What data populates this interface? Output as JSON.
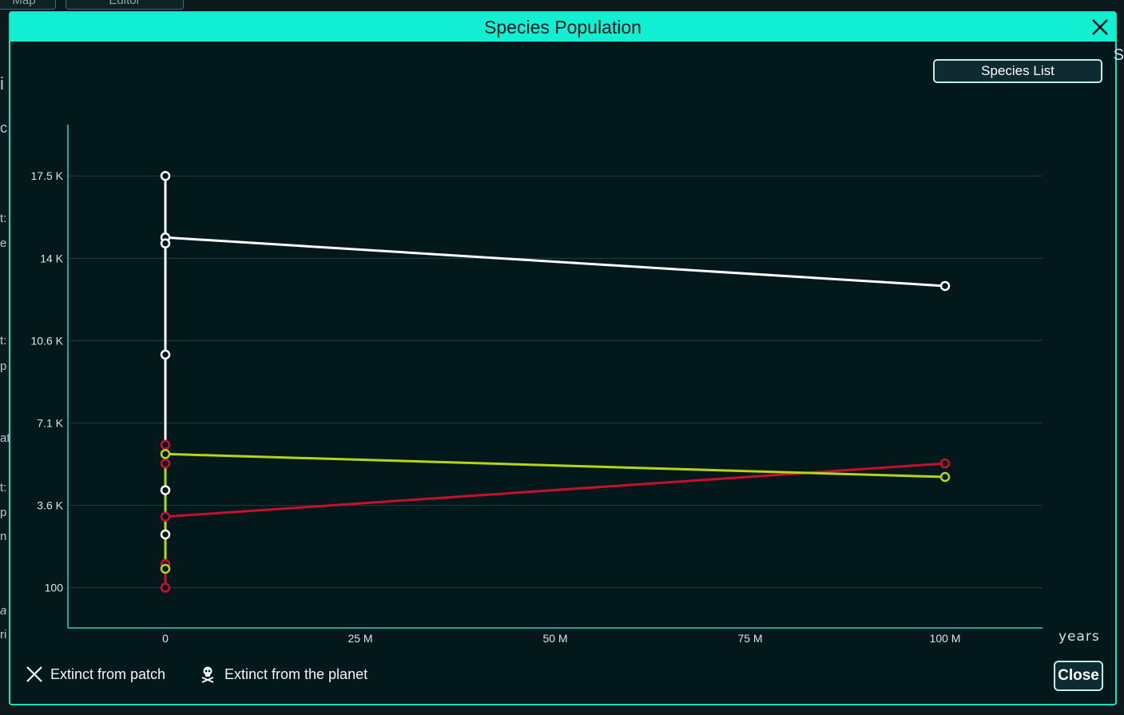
{
  "background": {
    "tabs": [
      "Map",
      "Editor"
    ],
    "edge_fragments": [
      "i",
      "c",
      "t:",
      "e",
      "t:",
      "p",
      "at",
      "t:",
      "p",
      "n",
      "a",
      "ri"
    ]
  },
  "dialog": {
    "title": "Species Population",
    "species_list_label": "Species List",
    "close_label": "Close",
    "legend": {
      "extinct_patch": "Extinct from patch",
      "extinct_planet": "Extinct from the planet"
    }
  },
  "colors": {
    "accent": "#11f0d2",
    "series_white": "#ffffff",
    "series_red": "#c8102e",
    "series_green": "#b5d615"
  },
  "chart_data": {
    "type": "line",
    "xlabel": "years",
    "ylabel": "",
    "title": "",
    "x_ticks": [
      {
        "value": 0,
        "label": "0"
      },
      {
        "value": 25000000,
        "label": "25 M"
      },
      {
        "value": 50000000,
        "label": "50 M"
      },
      {
        "value": 75000000,
        "label": "75 M"
      },
      {
        "value": 100000000,
        "label": "100 M"
      }
    ],
    "y_ticks": [
      {
        "value": 100,
        "label": "100"
      },
      {
        "value": 3580,
        "label": "3.6 K"
      },
      {
        "value": 7060,
        "label": "7.1 K"
      },
      {
        "value": 10540,
        "label": "10.6 K"
      },
      {
        "value": 14020,
        "label": "14 K"
      },
      {
        "value": 17500,
        "label": "17.5 K"
      }
    ],
    "xlim": [
      -12500000,
      112500000
    ],
    "ylim": [
      -1600,
      19500
    ],
    "series": [
      {
        "color": "#ffffff",
        "points": [
          {
            "x": 0,
            "y": 17500
          },
          {
            "x": 0,
            "y": 14900
          },
          {
            "x": 0,
            "y": 14650
          },
          {
            "x": 0,
            "y": 9950
          },
          {
            "x": 0,
            "y": 4220
          },
          {
            "x": 0,
            "y": 2350
          },
          {
            "x": 100000000,
            "y": 12850
          }
        ],
        "line": [
          {
            "x": 0,
            "y": 17500
          },
          {
            "x": 0,
            "y": 5700
          },
          {
            "x": 0,
            "y": 14900
          },
          {
            "x": 100000000,
            "y": 12850
          }
        ]
      },
      {
        "color": "#c8102e",
        "points": [
          {
            "x": 0,
            "y": 6140
          },
          {
            "x": 0,
            "y": 5350
          },
          {
            "x": 0,
            "y": 3100
          },
          {
            "x": 0,
            "y": 1100
          },
          {
            "x": 0,
            "y": 100
          },
          {
            "x": 100000000,
            "y": 5350
          }
        ],
        "line": [
          {
            "x": 0,
            "y": 6140
          },
          {
            "x": 0,
            "y": 100
          },
          {
            "x": 0,
            "y": 3100
          },
          {
            "x": 100000000,
            "y": 5350
          }
        ]
      },
      {
        "color": "#b5d615",
        "points": [
          {
            "x": 0,
            "y": 5750
          },
          {
            "x": 0,
            "y": 900
          },
          {
            "x": 100000000,
            "y": 4780
          }
        ],
        "line": [
          {
            "x": 0,
            "y": 900
          },
          {
            "x": 0,
            "y": 5750
          },
          {
            "x": 100000000,
            "y": 4780
          }
        ]
      }
    ]
  }
}
